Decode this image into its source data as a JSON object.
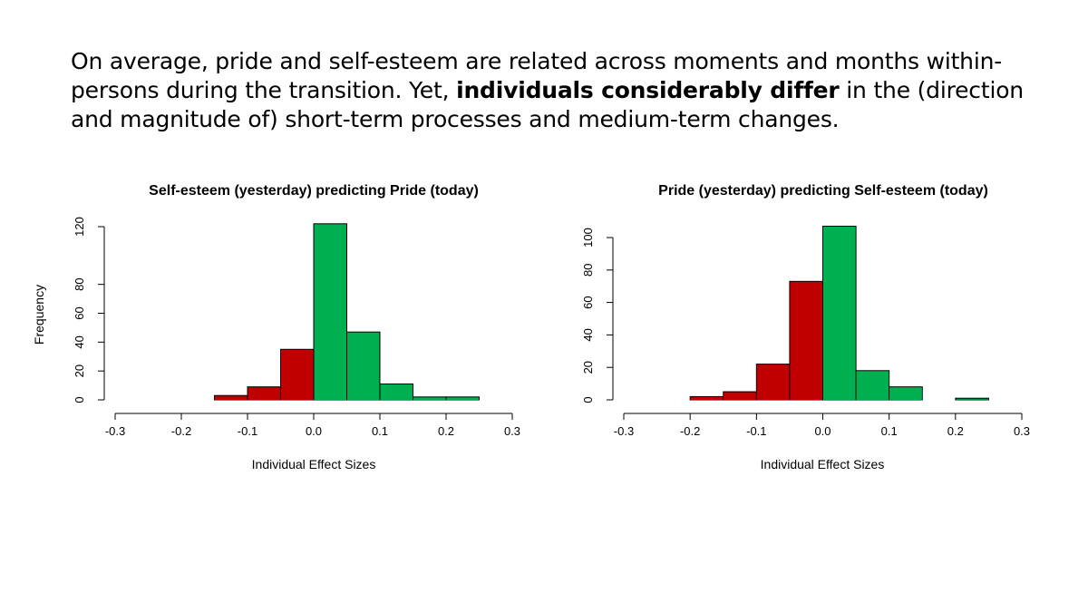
{
  "slide": {
    "text_part1": "On average, pride and self-esteem are related across moments and months within-persons during the transition. Yet, ",
    "text_bold": "individuals considerably differ",
    "text_part2": " in the (direction and magnitude of) short-term processes and medium-term changes."
  },
  "colors": {
    "negative": "#c00000",
    "positive": "#00b050",
    "axis": "#000000"
  },
  "chart_data": [
    {
      "type": "bar",
      "subtype": "histogram",
      "title": "Self-esteem (yesterday) predicting Pride (today)",
      "xlabel": "Individual Effect Sizes",
      "ylabel": "Frequency",
      "xlim": [
        -0.3,
        0.3
      ],
      "xticks": [
        "-0.3",
        "-0.2",
        "-0.1",
        "0.0",
        "0.1",
        "0.2",
        "0.3"
      ],
      "ylim": [
        0,
        120
      ],
      "yticks": [
        0,
        20,
        40,
        60,
        80,
        120
      ],
      "bins": [
        {
          "x0": -0.15,
          "x1": -0.1,
          "count": 3
        },
        {
          "x0": -0.1,
          "x1": -0.05,
          "count": 9
        },
        {
          "x0": -0.05,
          "x1": 0.0,
          "count": 35
        },
        {
          "x0": 0.0,
          "x1": 0.05,
          "count": 122
        },
        {
          "x0": 0.05,
          "x1": 0.1,
          "count": 47
        },
        {
          "x0": 0.1,
          "x1": 0.15,
          "count": 11
        },
        {
          "x0": 0.15,
          "x1": 0.2,
          "count": 2
        },
        {
          "x0": 0.2,
          "x1": 0.25,
          "count": 2
        }
      ]
    },
    {
      "type": "bar",
      "subtype": "histogram",
      "title": "Pride (yesterday) predicting Self-esteem (today)",
      "xlabel": "Individual Effect Sizes",
      "ylabel": "",
      "xlim": [
        -0.3,
        0.3
      ],
      "xticks": [
        "-0.3",
        "-0.2",
        "-0.1",
        "0.0",
        "0.1",
        "0.2",
        "0.3"
      ],
      "ylim": [
        0,
        100
      ],
      "yticks": [
        0,
        20,
        40,
        60,
        80,
        100
      ],
      "bins": [
        {
          "x0": -0.2,
          "x1": -0.15,
          "count": 2
        },
        {
          "x0": -0.15,
          "x1": -0.1,
          "count": 5
        },
        {
          "x0": -0.1,
          "x1": -0.05,
          "count": 22
        },
        {
          "x0": -0.05,
          "x1": 0.0,
          "count": 73
        },
        {
          "x0": 0.0,
          "x1": 0.05,
          "count": 107
        },
        {
          "x0": 0.05,
          "x1": 0.1,
          "count": 18
        },
        {
          "x0": 0.1,
          "x1": 0.15,
          "count": 8
        },
        {
          "x0": 0.15,
          "x1": 0.2,
          "count": 0
        },
        {
          "x0": 0.2,
          "x1": 0.25,
          "count": 1
        }
      ]
    }
  ]
}
